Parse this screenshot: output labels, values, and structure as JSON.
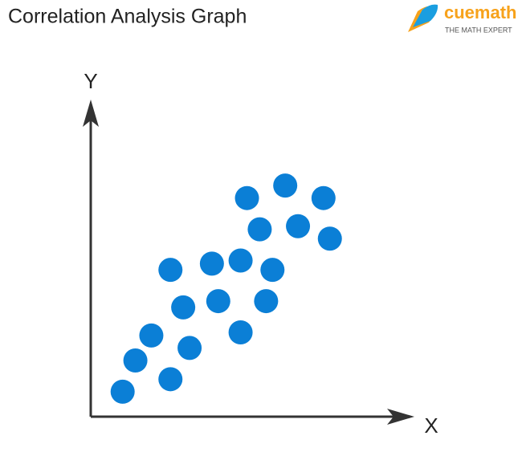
{
  "chart_data": {
    "type": "scatter",
    "title": "Correlation Analysis Graph",
    "x_label": "X",
    "y_label": "Y",
    "color": "#0b7fd6",
    "x": [
      1.0,
      1.4,
      1.9,
      2.5,
      3.1,
      2.9,
      2.5,
      3.8,
      4.0,
      4.7,
      4.7,
      5.7,
      5.5,
      4.9,
      5.3,
      6.1,
      6.5,
      7.3,
      7.5
    ],
    "values": [
      0.8,
      1.8,
      2.6,
      1.2,
      2.2,
      3.5,
      4.7,
      4.9,
      3.7,
      2.7,
      5.0,
      4.7,
      3.7,
      7.0,
      6.0,
      7.4,
      6.1,
      7.0,
      5.7
    ],
    "xlim": [
      0,
      10
    ],
    "ylim": [
      0,
      10
    ]
  },
  "logo": {
    "name": "cuemath",
    "tagline": "THE MATH EXPERT"
  }
}
